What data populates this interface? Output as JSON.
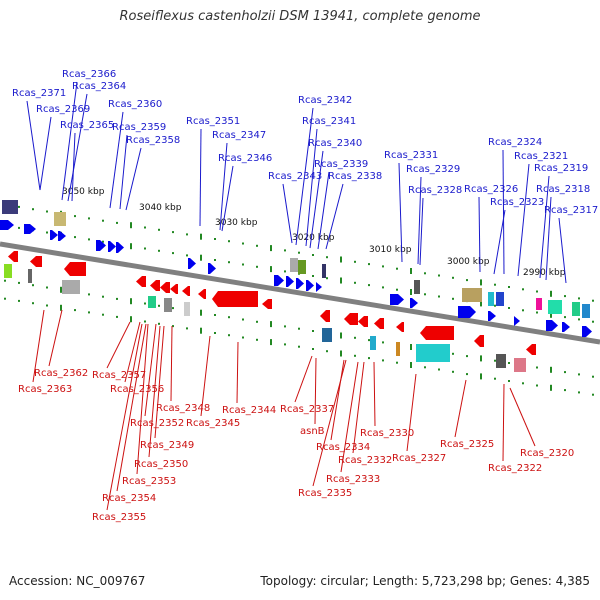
{
  "title": "Roseiflexus castenholzii DSM 13941, complete genome",
  "footer": {
    "accession": "Accession: NC_009767",
    "info": "Topology: circular; Length: 5,723,298 bp; Genes: 4,385"
  },
  "colors": {
    "forward": "#0000ee",
    "reverse": "#ee0000",
    "label_fwd": "#1a1acc",
    "label_rev": "#cc1111",
    "backbone": "#808080",
    "tick": "#228822"
  },
  "ruler": [
    "3050 kbp",
    "3040 kbp",
    "3030 kbp",
    "3020 kbp",
    "3010 kbp",
    "3000 kbp",
    "2990 kbp"
  ],
  "labels_top": [
    "Rcas_2371",
    "Rcas_2366",
    "Rcas_2364",
    "Rcas_2369",
    "Rcas_2360",
    "Rcas_2365",
    "Rcas_2359",
    "Rcas_2358",
    "Rcas_2351",
    "Rcas_2347",
    "Rcas_2346",
    "Rcas_2342",
    "Rcas_2341",
    "Rcas_2340",
    "Rcas_2339",
    "Rcas_2343",
    "Rcas_2338",
    "Rcas_2331",
    "Rcas_2329",
    "Rcas_2328",
    "Rcas_2324",
    "Rcas_2321",
    "Rcas_2319",
    "Rcas_2318",
    "Rcas_2326",
    "Rcas_2323",
    "Rcas_2317"
  ],
  "labels_bottom": [
    "Rcas_2362",
    "Rcas_2363",
    "Rcas_2357",
    "Rcas_2356",
    "Rcas_2348",
    "Rcas_2352",
    "Rcas_2344",
    "Rcas_2345",
    "Rcas_2349",
    "Rcas_2350",
    "Rcas_2353",
    "Rcas_2354",
    "Rcas_2355",
    "Rcas_2337",
    "asnB",
    "Rcas_2334",
    "Rcas_2330",
    "Rcas_2332",
    "Rcas_2333",
    "Rcas_2335",
    "Rcas_2327",
    "Rcas_2325",
    "Rcas_2320",
    "Rcas_2322"
  ]
}
